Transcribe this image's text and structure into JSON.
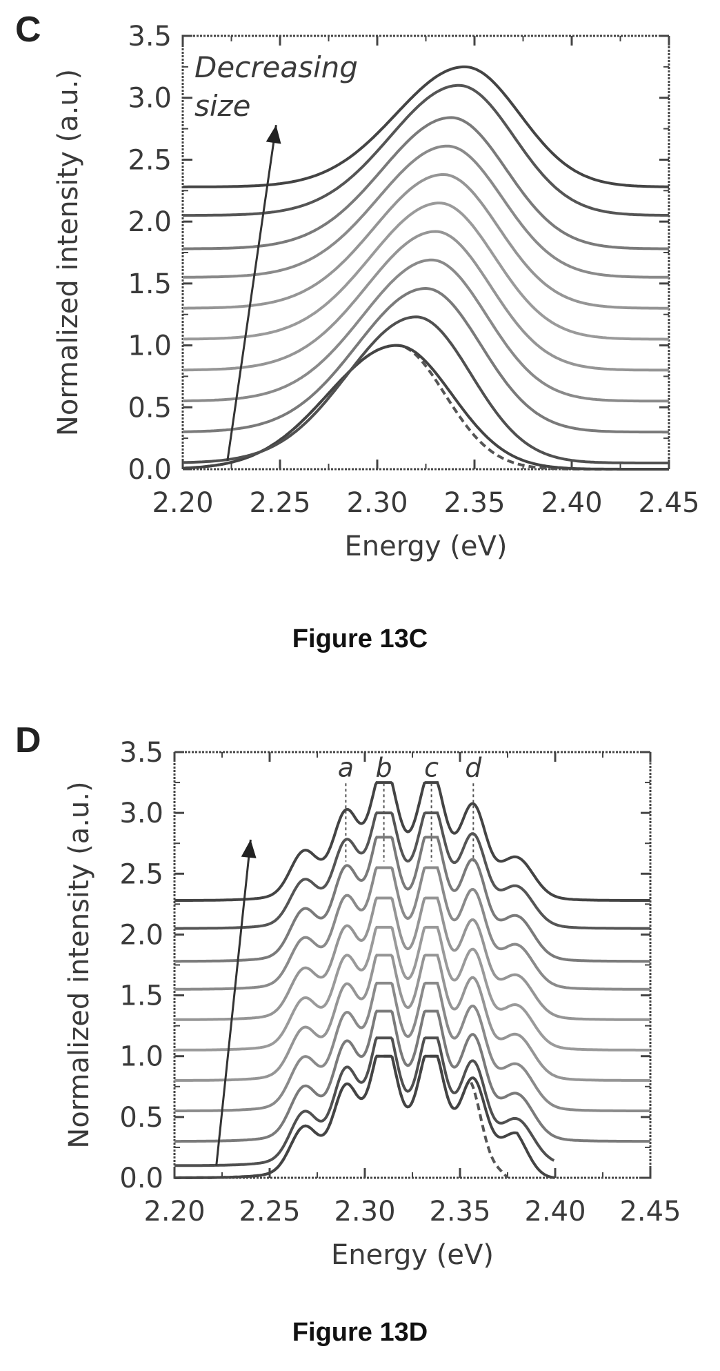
{
  "chart_data": [
    {
      "type": "line",
      "panel_letter": "C",
      "caption": "Figure 13C",
      "xlabel": "Energy (eV)",
      "ylabel": "Normalized intensity (a.u.)",
      "xlim": [
        2.2,
        2.45
      ],
      "ylim": [
        0.0,
        3.5
      ],
      "x_ticks": [
        "2.20",
        "2.25",
        "2.30",
        "2.35",
        "2.40",
        "2.45"
      ],
      "y_ticks": [
        "0.0",
        "0.5",
        "1.0",
        "1.5",
        "2.0",
        "2.5",
        "3.0",
        "3.5"
      ],
      "annotation": {
        "line1": "Decreasing",
        "line2": "size"
      },
      "arrow": {
        "from": [
          2.223,
          0.07
        ],
        "to": [
          2.248,
          2.78
        ]
      },
      "grid": false,
      "series_model": "Each spectrum is a single broad peak; values listed per series",
      "series": [
        {
          "style": "dashed",
          "offset": 0.0,
          "peak_x": 2.31,
          "peak_height": 1.0,
          "baseline": 0.0,
          "width_left": 0.05,
          "width_right": 0.035
        },
        {
          "style": "solid",
          "offset": 0.0,
          "peak_x": 2.31,
          "peak_height": 1.0,
          "baseline": 0.0,
          "width_left": 0.05,
          "width_right": 0.04
        },
        {
          "style": "solid",
          "offset": 0.05,
          "peak_x": 2.32,
          "peak_height": 1.23,
          "baseline": 0.05,
          "width_left": 0.05,
          "width_right": 0.04
        },
        {
          "style": "solid",
          "offset": 0.3,
          "peak_x": 2.325,
          "peak_height": 1.46,
          "baseline": 0.3,
          "width_left": 0.05,
          "width_right": 0.04
        },
        {
          "style": "solid",
          "offset": 0.55,
          "peak_x": 2.328,
          "peak_height": 1.69,
          "baseline": 0.55,
          "width_left": 0.05,
          "width_right": 0.04
        },
        {
          "style": "solid",
          "offset": 0.8,
          "peak_x": 2.33,
          "peak_height": 1.92,
          "baseline": 0.8,
          "width_left": 0.05,
          "width_right": 0.04
        },
        {
          "style": "solid",
          "offset": 1.05,
          "peak_x": 2.332,
          "peak_height": 2.15,
          "baseline": 1.05,
          "width_left": 0.05,
          "width_right": 0.04
        },
        {
          "style": "solid",
          "offset": 1.3,
          "peak_x": 2.334,
          "peak_height": 2.38,
          "baseline": 1.3,
          "width_left": 0.05,
          "width_right": 0.04
        },
        {
          "style": "solid",
          "offset": 1.55,
          "peak_x": 2.336,
          "peak_height": 2.61,
          "baseline": 1.55,
          "width_left": 0.05,
          "width_right": 0.04
        },
        {
          "style": "solid",
          "offset": 1.78,
          "peak_x": 2.338,
          "peak_height": 2.84,
          "baseline": 1.78,
          "width_left": 0.05,
          "width_right": 0.04
        },
        {
          "style": "solid",
          "offset": 2.05,
          "peak_x": 2.342,
          "peak_height": 3.1,
          "baseline": 2.05,
          "width_left": 0.05,
          "width_right": 0.04
        },
        {
          "style": "solid",
          "offset": 2.28,
          "peak_x": 2.345,
          "peak_height": 3.25,
          "baseline": 2.28,
          "width_left": 0.05,
          "width_right": 0.04
        }
      ]
    },
    {
      "type": "line",
      "panel_letter": "D",
      "caption": "Figure 13D",
      "xlabel": "Energy (eV)",
      "ylabel": "Normalized intensity (a.u.)",
      "xlim": [
        2.2,
        2.45
      ],
      "ylim": [
        0.0,
        3.5
      ],
      "x_ticks": [
        "2.20",
        "2.25",
        "2.30",
        "2.35",
        "2.40",
        "2.45"
      ],
      "y_ticks": [
        "0.0",
        "0.5",
        "1.0",
        "1.5",
        "2.0",
        "2.5",
        "3.0",
        "3.5"
      ],
      "peak_labels": [
        {
          "text": "a",
          "x": 2.29,
          "y_top": 3.3
        },
        {
          "text": "b",
          "x": 2.31,
          "y_top": 3.3
        },
        {
          "text": "c",
          "x": 2.335,
          "y_top": 3.3
        },
        {
          "text": "d",
          "x": 2.357,
          "y_top": 3.3
        }
      ],
      "arrow": {
        "from": [
          2.222,
          0.1
        ],
        "to": [
          2.24,
          2.78
        ]
      },
      "grid": false,
      "series_model": "Structured spectra with phonon peaks at a, b, c, d; values listed per series",
      "peaks_x": [
        2.268,
        2.29,
        2.31,
        2.335,
        2.357,
        2.38
      ],
      "series": [
        {
          "style": "dashed",
          "baseline": 0.0,
          "peak_height": 1.0,
          "cutoff": 2.375
        },
        {
          "style": "solid",
          "baseline": 0.0,
          "peak_height": 1.0,
          "cutoff": 2.4
        },
        {
          "style": "solid",
          "baseline": 0.1,
          "peak_height": 1.15,
          "cutoff": 2.4
        },
        {
          "style": "solid",
          "baseline": 0.3,
          "peak_height": 1.37,
          "cutoff": 2.45
        },
        {
          "style": "solid",
          "baseline": 0.55,
          "peak_height": 1.6,
          "cutoff": 2.45
        },
        {
          "style": "solid",
          "baseline": 0.8,
          "peak_height": 1.83,
          "cutoff": 2.45
        },
        {
          "style": "solid",
          "baseline": 1.05,
          "peak_height": 2.06,
          "cutoff": 2.45
        },
        {
          "style": "solid",
          "baseline": 1.3,
          "peak_height": 2.3,
          "cutoff": 2.45
        },
        {
          "style": "solid",
          "baseline": 1.55,
          "peak_height": 2.55,
          "cutoff": 2.45
        },
        {
          "style": "solid",
          "baseline": 1.78,
          "peak_height": 2.8,
          "cutoff": 2.45
        },
        {
          "style": "solid",
          "baseline": 2.05,
          "peak_height": 3.0,
          "cutoff": 2.45
        },
        {
          "style": "solid",
          "baseline": 2.28,
          "peak_height": 3.25,
          "cutoff": 2.45
        }
      ]
    }
  ]
}
